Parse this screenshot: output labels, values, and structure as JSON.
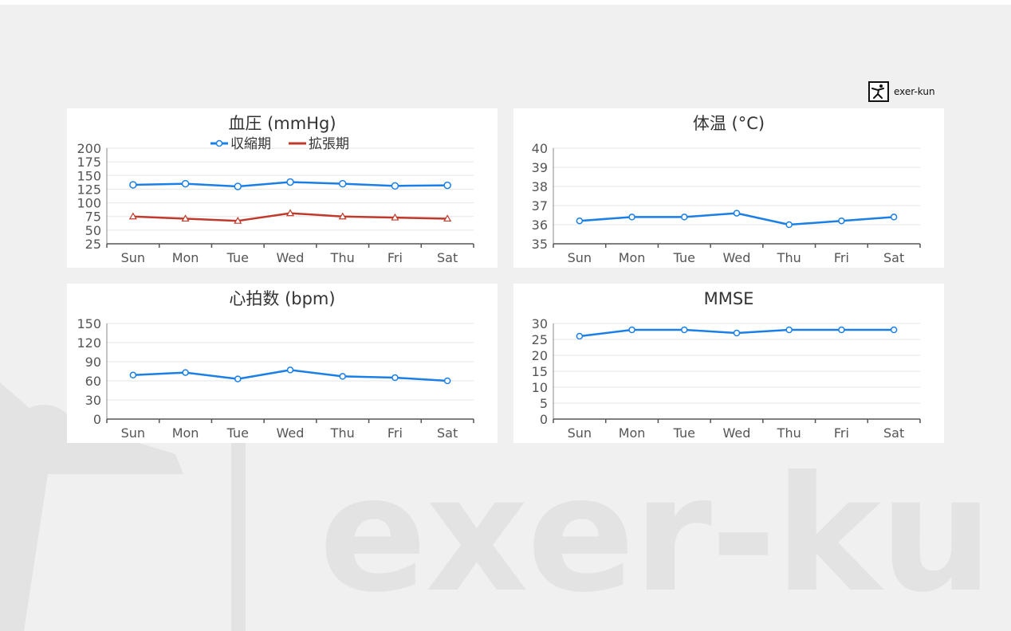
{
  "brand": {
    "logo_text": "exer-kun",
    "watermark_text": "exer-ku",
    "logo_icon": "person-stretch-icon"
  },
  "colors": {
    "primary_series": "#1a7fe6",
    "secondary_series": "#c0392b"
  },
  "chart_data": [
    {
      "id": "bp",
      "type": "line",
      "title": "血圧 (mmHg)",
      "categories": [
        "Sun",
        "Mon",
        "Tue",
        "Wed",
        "Thu",
        "Fri",
        "Sat"
      ],
      "y_ticks": [
        25,
        50,
        75,
        100,
        125,
        150,
        175,
        200
      ],
      "ylim": [
        25,
        200
      ],
      "legend": "top",
      "series": [
        {
          "name": "収縮期",
          "values": [
            133,
            135,
            130,
            138,
            135,
            131,
            132
          ],
          "color": "#1a7fe6",
          "marker": "circle"
        },
        {
          "name": "拡張期",
          "values": [
            75,
            71,
            67,
            81,
            75,
            73,
            71
          ],
          "color": "#c0392b",
          "marker": "triangle"
        }
      ]
    },
    {
      "id": "temp",
      "type": "line",
      "title": "体温 (°C)",
      "categories": [
        "Sun",
        "Mon",
        "Tue",
        "Wed",
        "Thu",
        "Fri",
        "Sat"
      ],
      "y_ticks": [
        35,
        36,
        37,
        38,
        39,
        40
      ],
      "ylim": [
        35,
        40
      ],
      "series": [
        {
          "values": [
            36.2,
            36.4,
            36.4,
            36.6,
            36.0,
            36.2,
            36.4
          ],
          "color": "#1a7fe6",
          "marker": "circle"
        }
      ]
    },
    {
      "id": "hr",
      "type": "line",
      "title": "心拍数 (bpm)",
      "categories": [
        "Sun",
        "Mon",
        "Tue",
        "Wed",
        "Thu",
        "Fri",
        "Sat"
      ],
      "y_ticks": [
        0,
        30,
        60,
        90,
        120,
        150
      ],
      "ylim": [
        0,
        150
      ],
      "series": [
        {
          "values": [
            69,
            73,
            63,
            77,
            67,
            65,
            60
          ],
          "color": "#1a7fe6",
          "marker": "circle"
        }
      ]
    },
    {
      "id": "mmse",
      "type": "line",
      "title": "MMSE",
      "categories": [
        "Sun",
        "Mon",
        "Tue",
        "Wed",
        "Thu",
        "Fri",
        "Sat"
      ],
      "y_ticks": [
        0,
        5,
        10,
        15,
        20,
        25,
        30
      ],
      "ylim": [
        0,
        30
      ],
      "series": [
        {
          "values": [
            26,
            28,
            28,
            27,
            28,
            28,
            28
          ],
          "color": "#1a7fe6",
          "marker": "circle"
        }
      ]
    }
  ]
}
